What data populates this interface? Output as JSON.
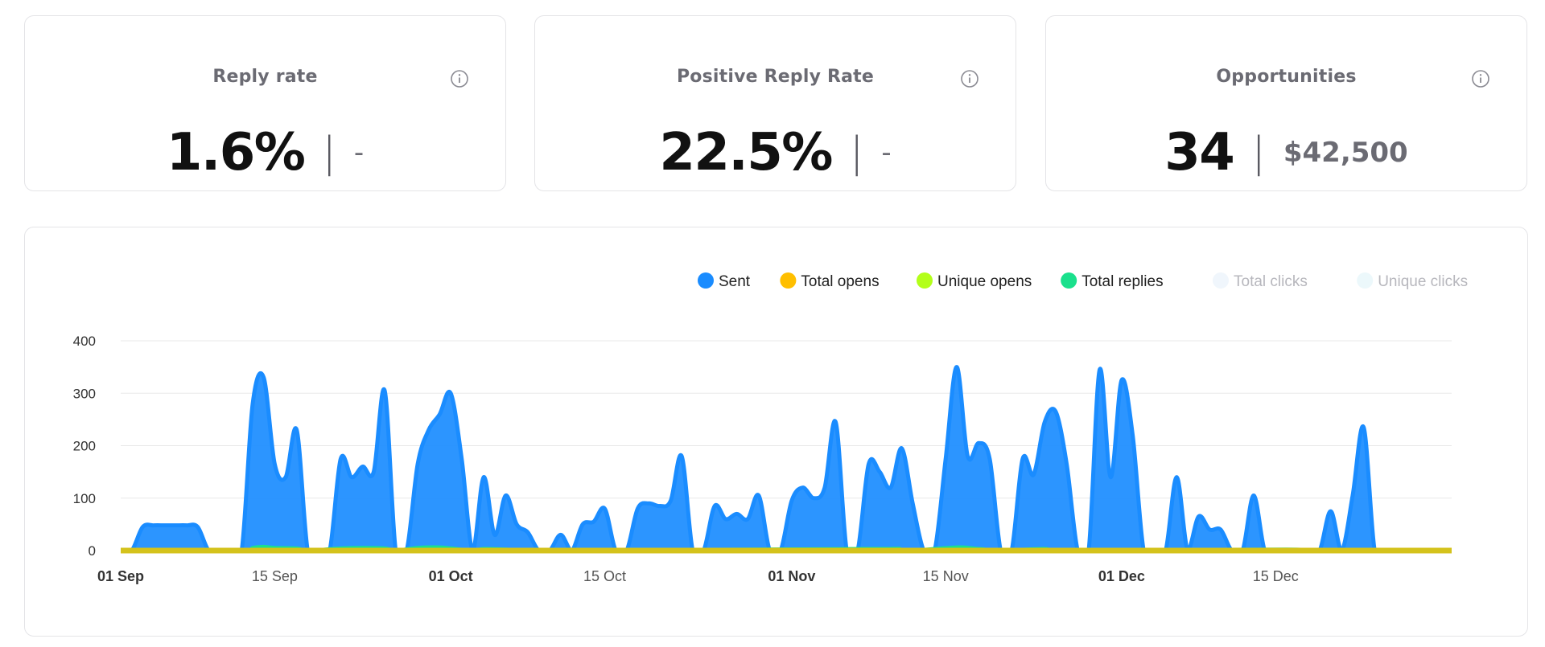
{
  "cards": [
    {
      "title": "Reply rate",
      "value": "1.6%",
      "separator": "|",
      "secondary": "-"
    },
    {
      "title": "Positive Reply Rate",
      "value": "22.5%",
      "separator": "|",
      "secondary": "-"
    },
    {
      "title": "Opportunities",
      "value": "34",
      "separator": "|",
      "secondary": "$42,500"
    }
  ],
  "chart_data": {
    "type": "area",
    "x_start": "2024-09-01",
    "x_end": "2024-12-31",
    "x_tick_labels": [
      {
        "date": "2024-09-01",
        "label": "01 Sep",
        "bold": true
      },
      {
        "date": "2024-09-15",
        "label": "15 Sep",
        "bold": false
      },
      {
        "date": "2024-10-01",
        "label": "01 Oct",
        "bold": true
      },
      {
        "date": "2024-10-15",
        "label": "15 Oct",
        "bold": false
      },
      {
        "date": "2024-11-01",
        "label": "01 Nov",
        "bold": true
      },
      {
        "date": "2024-11-15",
        "label": "15 Nov",
        "bold": false
      },
      {
        "date": "2024-12-01",
        "label": "01 Dec",
        "bold": true
      },
      {
        "date": "2024-12-15",
        "label": "15 Dec",
        "bold": false
      }
    ],
    "y_ticks": [
      "0",
      "100",
      "200",
      "300",
      "400"
    ],
    "ylim": [
      0,
      400
    ],
    "grid": true,
    "legend_position": "top-right",
    "legend": [
      {
        "name": "Sent",
        "color": "#1a8cff",
        "active": true
      },
      {
        "name": "Total opens",
        "color": "#ffbf00",
        "active": true
      },
      {
        "name": "Unique opens",
        "color": "#b3ff1a",
        "active": true
      },
      {
        "name": "Total replies",
        "color": "#1ae08c",
        "active": true
      },
      {
        "name": "Total clicks",
        "color": "#f0f6fc",
        "active": false
      },
      {
        "name": "Unique clicks",
        "color": "#ecf8fb",
        "active": false
      }
    ],
    "series": [
      {
        "name": "Sent",
        "color": "#1a8cff",
        "points": [
          [
            "2024-09-01",
            0
          ],
          [
            "2024-09-02",
            0
          ],
          [
            "2024-09-03",
            45
          ],
          [
            "2024-09-04",
            48
          ],
          [
            "2024-09-05",
            48
          ],
          [
            "2024-09-06",
            48
          ],
          [
            "2024-09-07",
            48
          ],
          [
            "2024-09-08",
            45
          ],
          [
            "2024-09-09",
            0
          ],
          [
            "2024-09-10",
            0
          ],
          [
            "2024-09-11",
            0
          ],
          [
            "2024-09-12",
            0
          ],
          [
            "2024-09-13",
            280
          ],
          [
            "2024-09-14",
            330
          ],
          [
            "2024-09-15",
            165
          ],
          [
            "2024-09-16",
            140
          ],
          [
            "2024-09-17",
            230
          ],
          [
            "2024-09-18",
            0
          ],
          [
            "2024-09-19",
            0
          ],
          [
            "2024-09-20",
            0
          ],
          [
            "2024-09-21",
            175
          ],
          [
            "2024-09-22",
            140
          ],
          [
            "2024-09-23",
            160
          ],
          [
            "2024-09-24",
            150
          ],
          [
            "2024-09-25",
            305
          ],
          [
            "2024-09-26",
            0
          ],
          [
            "2024-09-27",
            0
          ],
          [
            "2024-09-28",
            165
          ],
          [
            "2024-09-29",
            230
          ],
          [
            "2024-09-30",
            260
          ],
          [
            "2024-10-01",
            300
          ],
          [
            "2024-10-02",
            175
          ],
          [
            "2024-10-03",
            0
          ],
          [
            "2024-10-04",
            140
          ],
          [
            "2024-10-05",
            30
          ],
          [
            "2024-10-06",
            105
          ],
          [
            "2024-10-07",
            50
          ],
          [
            "2024-10-08",
            35
          ],
          [
            "2024-10-09",
            0
          ],
          [
            "2024-10-10",
            0
          ],
          [
            "2024-10-11",
            30
          ],
          [
            "2024-10-12",
            0
          ],
          [
            "2024-10-13",
            50
          ],
          [
            "2024-10-14",
            55
          ],
          [
            "2024-10-15",
            80
          ],
          [
            "2024-10-16",
            0
          ],
          [
            "2024-10-17",
            0
          ],
          [
            "2024-10-18",
            80
          ],
          [
            "2024-10-19",
            90
          ],
          [
            "2024-10-20",
            85
          ],
          [
            "2024-10-21",
            95
          ],
          [
            "2024-10-22",
            180
          ],
          [
            "2024-10-23",
            0
          ],
          [
            "2024-10-24",
            0
          ],
          [
            "2024-10-25",
            85
          ],
          [
            "2024-10-26",
            60
          ],
          [
            "2024-10-27",
            70
          ],
          [
            "2024-10-28",
            60
          ],
          [
            "2024-10-29",
            105
          ],
          [
            "2024-10-30",
            0
          ],
          [
            "2024-10-31",
            0
          ],
          [
            "2024-11-01",
            95
          ],
          [
            "2024-11-02",
            120
          ],
          [
            "2024-11-03",
            100
          ],
          [
            "2024-11-04",
            120
          ],
          [
            "2024-11-05",
            245
          ],
          [
            "2024-11-06",
            0
          ],
          [
            "2024-11-07",
            0
          ],
          [
            "2024-11-08",
            165
          ],
          [
            "2024-11-09",
            150
          ],
          [
            "2024-11-10",
            120
          ],
          [
            "2024-11-11",
            195
          ],
          [
            "2024-11-12",
            90
          ],
          [
            "2024-11-13",
            0
          ],
          [
            "2024-11-14",
            0
          ],
          [
            "2024-11-15",
            175
          ],
          [
            "2024-11-16",
            350
          ],
          [
            "2024-11-17",
            180
          ],
          [
            "2024-11-18",
            205
          ],
          [
            "2024-11-19",
            175
          ],
          [
            "2024-11-20",
            0
          ],
          [
            "2024-11-21",
            0
          ],
          [
            "2024-11-22",
            175
          ],
          [
            "2024-11-23",
            145
          ],
          [
            "2024-11-24",
            245
          ],
          [
            "2024-11-25",
            265
          ],
          [
            "2024-11-26",
            165
          ],
          [
            "2024-11-27",
            0
          ],
          [
            "2024-11-28",
            0
          ],
          [
            "2024-11-29",
            345
          ],
          [
            "2024-11-30",
            140
          ],
          [
            "2024-12-01",
            325
          ],
          [
            "2024-12-02",
            220
          ],
          [
            "2024-12-03",
            0
          ],
          [
            "2024-12-04",
            0
          ],
          [
            "2024-12-05",
            0
          ],
          [
            "2024-12-06",
            140
          ],
          [
            "2024-12-07",
            0
          ],
          [
            "2024-12-08",
            65
          ],
          [
            "2024-12-09",
            40
          ],
          [
            "2024-12-10",
            40
          ],
          [
            "2024-12-11",
            0
          ],
          [
            "2024-12-12",
            0
          ],
          [
            "2024-12-13",
            105
          ],
          [
            "2024-12-14",
            0
          ],
          [
            "2024-12-15",
            0
          ],
          [
            "2024-12-16",
            0
          ],
          [
            "2024-12-17",
            0
          ],
          [
            "2024-12-18",
            0
          ],
          [
            "2024-12-19",
            0
          ],
          [
            "2024-12-20",
            75
          ],
          [
            "2024-12-21",
            0
          ],
          [
            "2024-12-22",
            105
          ],
          [
            "2024-12-23",
            235
          ],
          [
            "2024-12-24",
            0
          ],
          [
            "2024-12-25",
            0
          ],
          [
            "2024-12-26",
            0
          ],
          [
            "2024-12-27",
            0
          ],
          [
            "2024-12-28",
            0
          ],
          [
            "2024-12-29",
            0
          ],
          [
            "2024-12-30",
            0
          ],
          [
            "2024-12-31",
            0
          ]
        ]
      },
      {
        "name": "Total replies",
        "color": "#1ae08c",
        "points": [
          [
            "2024-09-01",
            0
          ],
          [
            "2024-09-12",
            0
          ],
          [
            "2024-09-13",
            5
          ],
          [
            "2024-09-14",
            7
          ],
          [
            "2024-09-15",
            5
          ],
          [
            "2024-09-17",
            4
          ],
          [
            "2024-09-18",
            0
          ],
          [
            "2024-09-21",
            4
          ],
          [
            "2024-09-23",
            5
          ],
          [
            "2024-09-25",
            4
          ],
          [
            "2024-09-26",
            0
          ],
          [
            "2024-09-28",
            5
          ],
          [
            "2024-09-30",
            6
          ],
          [
            "2024-10-01",
            4
          ],
          [
            "2024-10-03",
            0
          ],
          [
            "2024-10-04",
            3
          ],
          [
            "2024-10-06",
            2
          ],
          [
            "2024-10-09",
            0
          ],
          [
            "2024-11-08",
            3
          ],
          [
            "2024-11-10",
            3
          ],
          [
            "2024-11-12",
            0
          ],
          [
            "2024-11-16",
            6
          ],
          [
            "2024-11-18",
            3
          ],
          [
            "2024-11-20",
            0
          ],
          [
            "2024-11-24",
            3
          ],
          [
            "2024-11-26",
            0
          ],
          [
            "2024-12-16",
            2
          ],
          [
            "2024-12-17",
            0
          ],
          [
            "2024-12-31",
            0
          ]
        ]
      },
      {
        "name": "Total opens",
        "color": "#d4c21c",
        "points": [
          [
            "2024-09-01",
            0
          ],
          [
            "2024-12-31",
            0
          ]
        ]
      }
    ]
  }
}
